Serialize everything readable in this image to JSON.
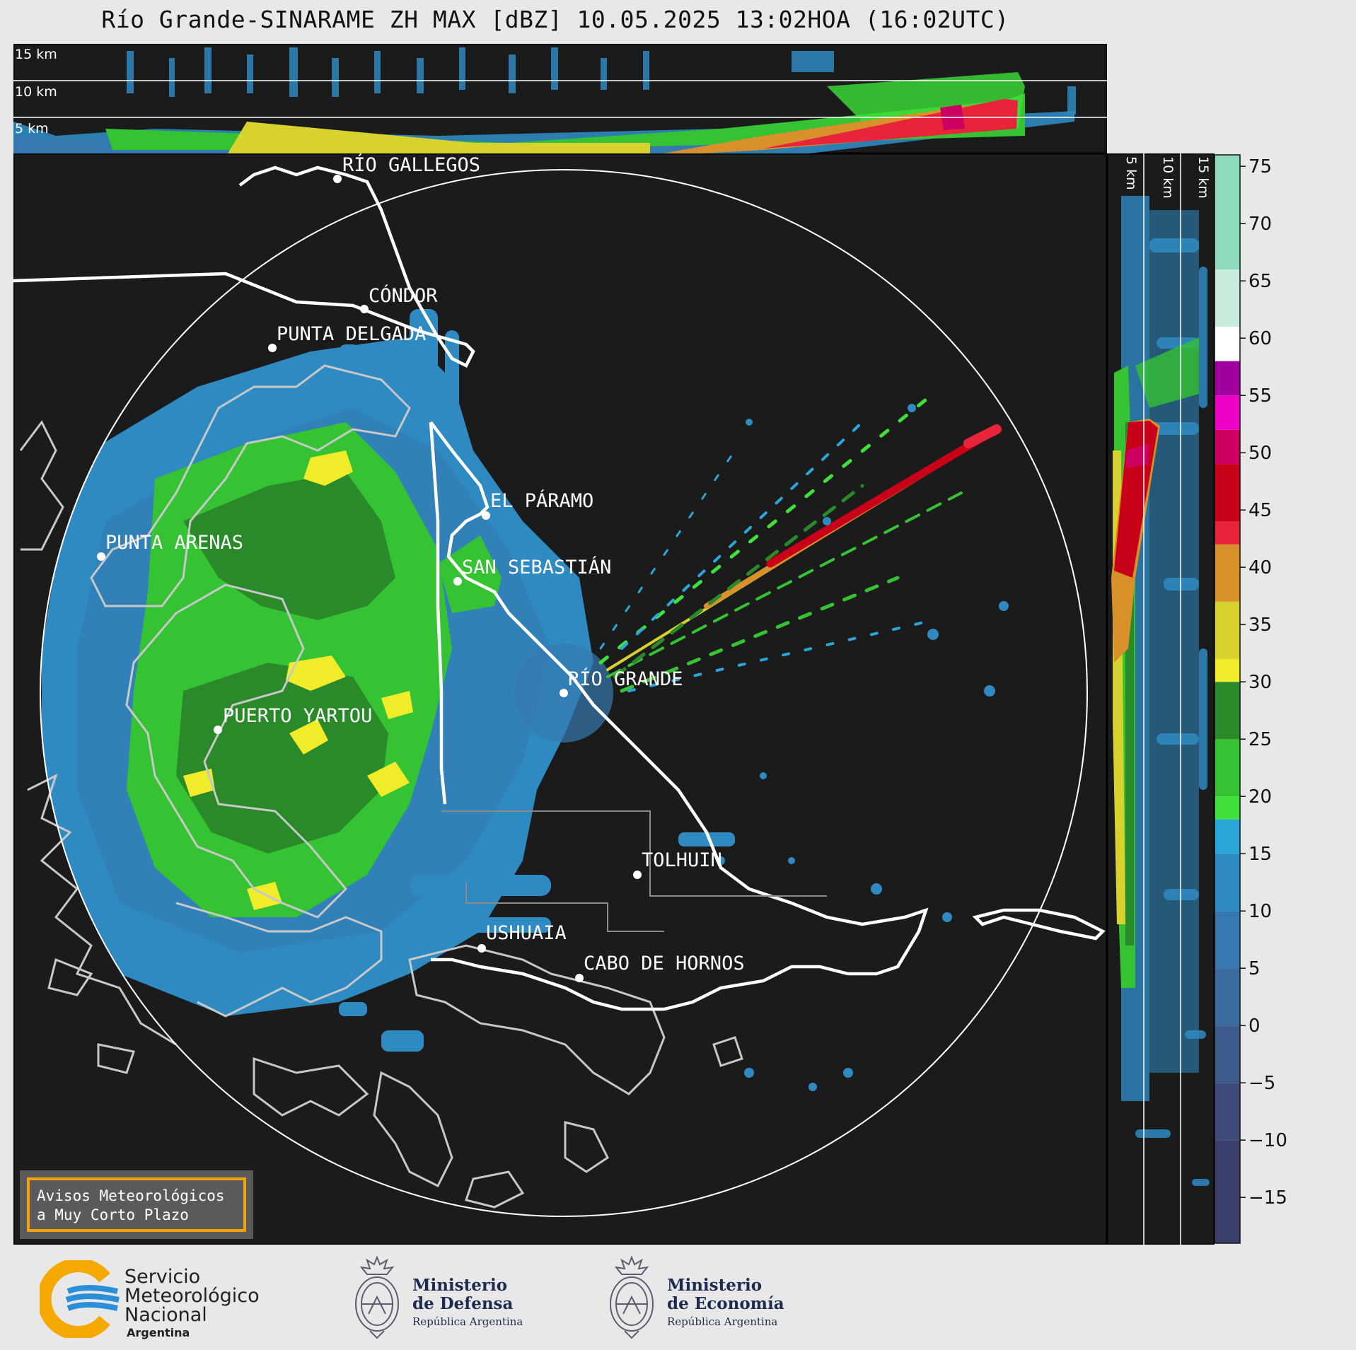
{
  "title": "Río Grande-SINARAME ZH MAX [dBZ] 10.05.2025 13:02HOA (16:02UTC)",
  "top_panel": {
    "height_labels": [
      "15 km",
      "10 km",
      "5 km"
    ]
  },
  "side_panel": {
    "height_labels": [
      "5 km",
      "10 km",
      "15 km"
    ]
  },
  "cities": [
    {
      "id": "rio-gallegos",
      "name": "RÍO GALLEGOS"
    },
    {
      "id": "condor",
      "name": "CÓNDOR"
    },
    {
      "id": "punta-delgada",
      "name": "PUNTA DELGADA"
    },
    {
      "id": "el-paramo",
      "name": "EL PÁRAMO"
    },
    {
      "id": "punta-arenas",
      "name": "PUNTA ARENAS"
    },
    {
      "id": "san-sebastian",
      "name": "SAN SEBASTIÁN"
    },
    {
      "id": "rio-grande",
      "name": "RÍO GRANDE"
    },
    {
      "id": "puerto-yartou",
      "name": "PUERTO YARTOU"
    },
    {
      "id": "tolhuin",
      "name": "TOLHUIN"
    },
    {
      "id": "ushuaia",
      "name": "USHUAIA"
    },
    {
      "id": "cabo-de-hornos",
      "name": "CABO DE HORNOS"
    }
  ],
  "colorbar": {
    "label_unit": "dBZ",
    "range": [
      -19,
      76
    ],
    "ticks": [
      "75",
      "70",
      "65",
      "60",
      "55",
      "50",
      "45",
      "40",
      "35",
      "30",
      "25",
      "20",
      "15",
      "10",
      "5",
      "0",
      "−5",
      "−10",
      "−15"
    ],
    "segments": [
      {
        "from": -19,
        "to": -10,
        "color": "#3b3f6b"
      },
      {
        "from": -10,
        "to": -5,
        "color": "#3e4a7a"
      },
      {
        "from": -5,
        "to": 0,
        "color": "#3d5a8c"
      },
      {
        "from": 0,
        "to": 5,
        "color": "#3a6a9e"
      },
      {
        "from": 5,
        "to": 10,
        "color": "#3679b0"
      },
      {
        "from": 10,
        "to": 15,
        "color": "#2f8ac2"
      },
      {
        "from": 15,
        "to": 18,
        "color": "#2aa6d8"
      },
      {
        "from": 18,
        "to": 20,
        "color": "#3fe03a"
      },
      {
        "from": 20,
        "to": 25,
        "color": "#35c233"
      },
      {
        "from": 25,
        "to": 30,
        "color": "#2a8a2a"
      },
      {
        "from": 30,
        "to": 32,
        "color": "#f0ec2a"
      },
      {
        "from": 32,
        "to": 37,
        "color": "#d8d22e"
      },
      {
        "from": 37,
        "to": 42,
        "color": "#d8902a"
      },
      {
        "from": 42,
        "to": 44,
        "color": "#e8243a"
      },
      {
        "from": 44,
        "to": 49,
        "color": "#c80018"
      },
      {
        "from": 49,
        "to": 52,
        "color": "#cc0060"
      },
      {
        "from": 52,
        "to": 55,
        "color": "#ee00c8"
      },
      {
        "from": 55,
        "to": 58,
        "color": "#a000a0"
      },
      {
        "from": 58,
        "to": 61,
        "color": "#ffffff"
      },
      {
        "from": 61,
        "to": 66,
        "color": "#c8ecdc"
      },
      {
        "from": 66,
        "to": 76,
        "color": "#8edcbc"
      }
    ]
  },
  "warning_box": {
    "line1": "Avisos Meteorológicos",
    "line2": "a Muy Corto Plazo"
  },
  "footer": {
    "smn": {
      "line1": "Servicio",
      "line2": "Meteorológico",
      "line3": "Nacional",
      "line4": "Argentina"
    },
    "defensa": {
      "line1": "Ministerio",
      "line2": "de Defensa",
      "line3": "República Argentina"
    },
    "economia": {
      "line1": "Ministerio",
      "line2": "de Economía",
      "line3": "República Argentina"
    }
  },
  "colors": {
    "plot_bg": "#1b1b1b",
    "coast": "#c8c8c8",
    "border": "#ffffff",
    "smn_blue": "#2a8fd8",
    "smn_orange": "#f5a800",
    "ministry_navy": "#1d2b4e"
  }
}
